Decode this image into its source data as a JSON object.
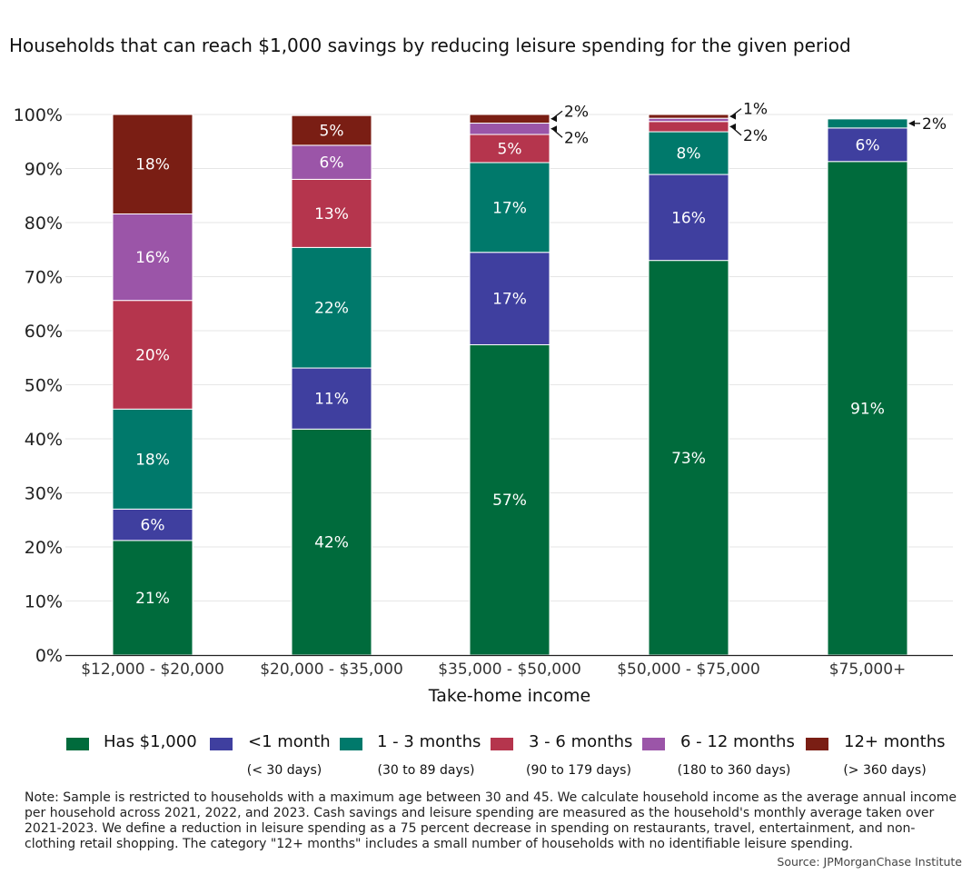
{
  "title": "Households that can reach $1,000 savings by reducing leisure spending for the given period",
  "chart_data": {
    "type": "bar",
    "stacked": true,
    "categories": [
      "$12,000 - $20,000",
      "$20,000 - $35,000",
      "$35,000 - $50,000",
      "$50,000 - $75,000",
      "$75,000+"
    ],
    "series": [
      {
        "name": "Has $1,000",
        "sub": "",
        "color": "#006B3C",
        "values": [
          21.2,
          41.8,
          57.4,
          73.0,
          91.3
        ],
        "labels": [
          "21%",
          "42%",
          "57%",
          "73%",
          "91%"
        ]
      },
      {
        "name": "<1 month",
        "sub": "(< 30 days)",
        "color": "#3F3F9F",
        "values": [
          5.8,
          11.3,
          17.1,
          15.9,
          6.2
        ],
        "labels": [
          "6%",
          "11%",
          "17%",
          "16%",
          "6%"
        ]
      },
      {
        "name": "1 - 3 months",
        "sub": "(30 to 89 days)",
        "color": "#00796B",
        "values": [
          18.5,
          22.3,
          16.6,
          7.9,
          1.7
        ],
        "labels": [
          "18%",
          "22%",
          "17%",
          "8%",
          "2%"
        ]
      },
      {
        "name": "3 - 6 months",
        "sub": "(90 to 179 days)",
        "color": "#B5354D",
        "values": [
          20.1,
          12.6,
          5.2,
          1.9,
          0.1
        ],
        "labels": [
          "20%",
          "13%",
          "5%",
          "2%",
          ""
        ]
      },
      {
        "name": "6 - 12 months",
        "sub": "(180 to 360 days)",
        "color": "#9B55A8",
        "values": [
          16.0,
          6.3,
          2.1,
          0.6,
          0.1
        ],
        "labels": [
          "16%",
          "6%",
          "2%",
          "",
          ""
        ]
      },
      {
        "name": "12+ months",
        "sub": "(> 360 days)",
        "color": "#7A1E14",
        "values": [
          18.4,
          5.5,
          1.6,
          0.7,
          0.1
        ],
        "labels": [
          "18%",
          "5%",
          "2%",
          "1%",
          ""
        ]
      }
    ],
    "callouts": [
      {
        "category": 2,
        "series": 5,
        "text": "2%"
      },
      {
        "category": 2,
        "series": 4,
        "text": "2%"
      },
      {
        "category": 3,
        "series": 5,
        "text": "1%"
      },
      {
        "category": 3,
        "series": 3,
        "text": "2%"
      },
      {
        "category": 4,
        "series": 2,
        "text": "2%"
      }
    ],
    "ylim": [
      0,
      100
    ],
    "yticks": [
      "0%",
      "10%",
      "20%",
      "30%",
      "40%",
      "50%",
      "60%",
      "70%",
      "80%",
      "90%",
      "100%"
    ],
    "xlabel": "Take-home income",
    "ylabel": "",
    "grid": true,
    "legend_position": "bottom"
  },
  "note": "Note: Sample is restricted to households with a maximum age between 30 and 45. We calculate household income as the average annual income per household across 2021, 2022, and 2023. Cash savings and leisure spending are measured as the household's monthly average taken over 2021-2023. We define a reduction in leisure spending as a 75 percent decrease in spending on restaurants, travel, entertainment, and non-clothing retail shopping. The category \"12+ months\" includes a small number of households with no identifiable leisure spending.",
  "source": "Source: JPMorganChase Institute"
}
